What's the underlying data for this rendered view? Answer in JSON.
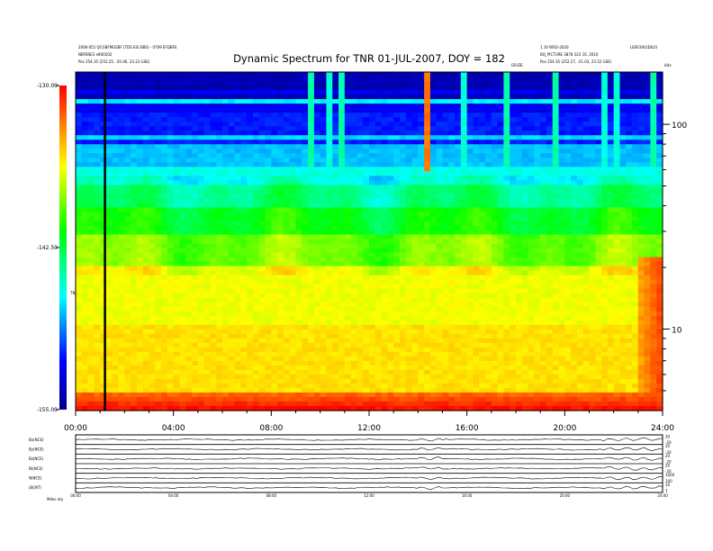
{
  "chart_data": {
    "type": "heatmap",
    "title": "Dynamic Spectrum for TNR 01-JUL-2007, DOY = 182",
    "header_lines_left": [
      "2006-051 QCGBFMGSBF (TDS EIG BBS) - 0709 EFQBFE",
      "NBFBSE3 e800202",
      "Pos   254.35 (252.25, -20.46, 23.23 GSE)"
    ],
    "header_lines_right": [
      "1.10 WSO-2020",
      "BQ_PICTURE 3878 323 10, 2010",
      "Pos   254.35 (252.27, -21.03, 23.52 GSE)"
    ],
    "corner_label_right": "LE0019(GDIL0)",
    "center_small_label": "GR-DE",
    "freq_unit_label": "kHz",
    "y_axis": {
      "scale": "log",
      "range_khz": [
        4,
        180
      ],
      "tick_labels": [
        "100",
        "10"
      ],
      "tick_values": [
        100,
        10
      ]
    },
    "x_axis": {
      "range_hours": [
        0,
        24
      ],
      "tick_labels": [
        "00:00",
        "04:00",
        "08:00",
        "12:00",
        "16:00",
        "20:00",
        "24:00"
      ]
    },
    "colorbar": {
      "tick_labels": [
        "-130.00",
        "-142.50",
        "-155.00"
      ],
      "label": "TNR",
      "range_db": [
        -155,
        -130
      ]
    },
    "marker_line_hour": 1.2,
    "burst_hours": [
      9.6,
      10.3,
      10.9,
      14.3,
      14.5,
      15.8,
      17.6,
      19.6,
      21.7,
      22.2,
      23.6
    ],
    "strong_burst_hour": 14.4,
    "bottom_panels": [
      {
        "label": "Bx(NCE)",
        "right_ticks": [
          "20",
          "-20"
        ]
      },
      {
        "label": "By(NCE)",
        "right_ticks": [
          "20",
          "-20"
        ]
      },
      {
        "label": "Bz(NCE)",
        "right_ticks": [
          "20",
          "-20"
        ]
      },
      {
        "label": "Bt(NCE)",
        "right_ticks": [
          "20",
          "-20"
        ]
      },
      {
        "label": "N(NCE)",
        "right_ticks": [
          "1000",
          "100"
        ]
      },
      {
        "label": "|B|(NT)",
        "right_ticks": [
          "10",
          "1"
        ]
      }
    ],
    "bottom_time_ticks": [
      "00:00",
      "04:00",
      "08:00",
      "12:00",
      "16:00",
      "20:00",
      "24:00"
    ],
    "bottom_footer": "Mdec  ety"
  }
}
